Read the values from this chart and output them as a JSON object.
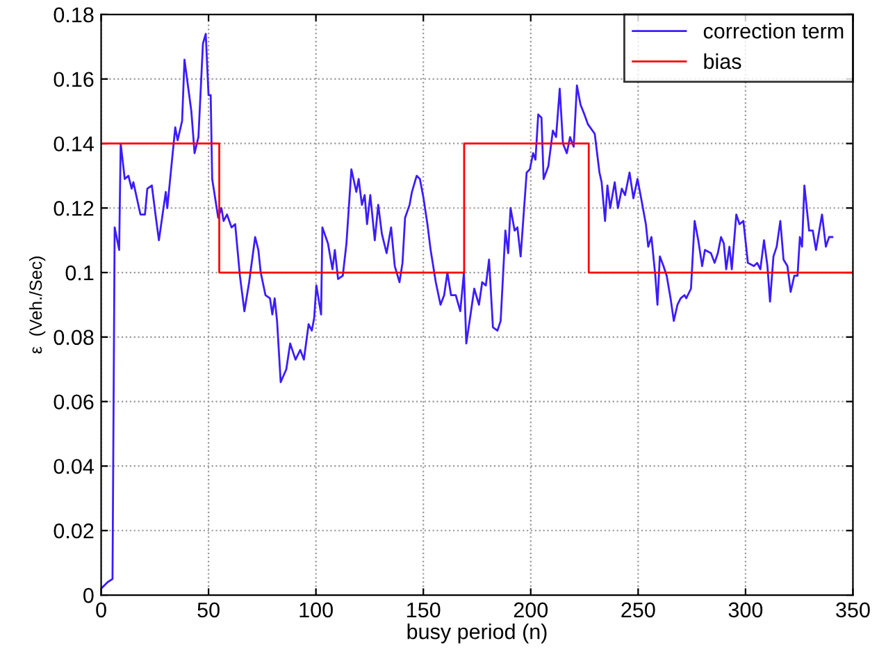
{
  "chart_data": {
    "type": "line",
    "xlabel": "busy period (n)",
    "ylabel": "ε  (Veh./Sec)",
    "xlim": [
      0,
      350
    ],
    "xticks": [
      0,
      50,
      100,
      150,
      200,
      250,
      300,
      350
    ],
    "ylim": [
      0,
      0.18
    ],
    "yticks": [
      0,
      0.02,
      0.04,
      0.06,
      0.08,
      0.1,
      0.12,
      0.14,
      0.16,
      0.18
    ],
    "grid": true,
    "legend": "top right",
    "series": [
      {
        "name": "correction term",
        "color": "#3b1cff",
        "x": [
          0,
          3,
          5.3,
          6.3,
          8.4,
          9.1,
          11,
          12.7,
          14.2,
          15,
          18.3,
          20.4,
          21.5,
          23.6,
          25.3,
          26.9,
          30.1,
          30.8,
          34.5,
          35.6,
          37.7,
          38.8,
          42,
          43.5,
          45.3,
          47.4,
          48.7,
          50,
          51,
          51.7,
          54.5,
          56,
          57,
          58.6,
          60.7,
          62.4,
          64.6,
          66.7,
          68.9,
          71.7,
          73.2,
          74.3,
          76.5,
          78.6,
          79.7,
          80.8,
          81.9,
          83.6,
          86.2,
          88,
          90.5,
          92.7,
          94.4,
          96.6,
          98.1,
          99.2,
          100.2,
          102.4,
          103,
          105.6,
          107.7,
          108.8,
          110.3,
          112.5,
          114.2,
          116.5,
          118.8,
          119.9,
          121.4,
          122.7,
          123.8,
          125.3,
          127.4,
          129,
          130.7,
          132.9,
          135,
          136.7,
          138.9,
          140.3,
          141.5,
          143.6,
          144.7,
          146.9,
          148.4,
          150.1,
          151.9,
          153.4,
          155.8,
          158,
          159.7,
          161.2,
          162.9,
          165.1,
          167.2,
          168.9,
          170,
          172.2,
          173.7,
          175.9,
          177.4,
          179.1,
          180.6,
          182.4,
          184.5,
          186,
          188.2,
          189.5,
          190.6,
          192.5,
          193.8,
          195.3,
          198.1,
          199.6,
          201.1,
          202.2,
          203.5,
          205,
          206,
          208.2,
          210.3,
          211.8,
          213.5,
          215,
          216.8,
          218.3,
          220,
          221.5,
          223.2,
          225,
          226.6,
          229.8,
          232,
          233,
          234.6,
          235.7,
          237,
          239.1,
          240.6,
          242.4,
          243.9,
          246,
          247.8,
          249.7,
          251.4,
          253.6,
          254.7,
          256.2,
          258,
          259,
          260.1,
          261.8,
          263.3,
          265.1,
          266.6,
          268.3,
          269.8,
          271.6,
          272.4,
          274.6,
          276.3,
          278,
          279.8,
          281.1,
          283.9,
          285.6,
          287.1,
          288.6,
          289.9,
          291,
          292.5,
          293.6,
          295.7,
          297.2,
          299,
          301.1,
          303.9,
          305.4,
          306.9,
          308.6,
          310.2,
          311.4,
          313,
          314.5,
          316.2,
          317.7,
          319.5,
          321,
          322.7,
          324.2,
          325.3,
          326.3,
          327.4,
          329.6,
          331.3,
          332.8,
          335.6,
          337.4,
          338.9,
          340.4
        ],
        "values": [
          0.002,
          0.004,
          0.005,
          0.114,
          0.107,
          0.14,
          0.129,
          0.13,
          0.126,
          0.128,
          0.118,
          0.118,
          0.126,
          0.127,
          0.118,
          0.11,
          0.125,
          0.12,
          0.145,
          0.141,
          0.147,
          0.166,
          0.15,
          0.137,
          0.142,
          0.171,
          0.174,
          0.155,
          0.155,
          0.129,
          0.117,
          0.12,
          0.116,
          0.118,
          0.114,
          0.115,
          0.099,
          0.088,
          0.097,
          0.111,
          0.107,
          0.1,
          0.093,
          0.092,
          0.087,
          0.092,
          0.085,
          0.066,
          0.07,
          0.078,
          0.073,
          0.076,
          0.073,
          0.084,
          0.082,
          0.086,
          0.096,
          0.087,
          0.114,
          0.109,
          0.101,
          0.107,
          0.098,
          0.099,
          0.109,
          0.132,
          0.125,
          0.129,
          0.121,
          0.124,
          0.115,
          0.124,
          0.11,
          0.121,
          0.112,
          0.106,
          0.114,
          0.102,
          0.097,
          0.103,
          0.117,
          0.121,
          0.125,
          0.13,
          0.129,
          0.123,
          0.115,
          0.107,
          0.097,
          0.09,
          0.093,
          0.1,
          0.093,
          0.093,
          0.088,
          0.1,
          0.078,
          0.088,
          0.095,
          0.09,
          0.097,
          0.096,
          0.104,
          0.083,
          0.082,
          0.085,
          0.113,
          0.106,
          0.12,
          0.113,
          0.114,
          0.105,
          0.131,
          0.132,
          0.137,
          0.135,
          0.149,
          0.148,
          0.129,
          0.133,
          0.144,
          0.142,
          0.157,
          0.14,
          0.137,
          0.142,
          0.139,
          0.158,
          0.152,
          0.149,
          0.146,
          0.143,
          0.131,
          0.128,
          0.116,
          0.127,
          0.12,
          0.128,
          0.12,
          0.126,
          0.124,
          0.131,
          0.123,
          0.129,
          0.123,
          0.115,
          0.108,
          0.111,
          0.099,
          0.09,
          0.105,
          0.102,
          0.099,
          0.092,
          0.085,
          0.09,
          0.092,
          0.093,
          0.092,
          0.095,
          0.116,
          0.11,
          0.102,
          0.107,
          0.106,
          0.103,
          0.106,
          0.111,
          0.109,
          0.101,
          0.108,
          0.101,
          0.118,
          0.115,
          0.116,
          0.103,
          0.102,
          0.103,
          0.101,
          0.11,
          0.102,
          0.091,
          0.105,
          0.108,
          0.116,
          0.104,
          0.102,
          0.094,
          0.099,
          0.099,
          0.111,
          0.108,
          0.127,
          0.113,
          0.113,
          0.107,
          0.118,
          0.108,
          0.111,
          0.111
        ]
      },
      {
        "name": "bias",
        "color": "#ff0000",
        "type": "step",
        "x": [
          0,
          55,
          169,
          227,
          350
        ],
        "values": [
          0.14,
          0.1,
          0.14,
          0.1,
          0.1
        ]
      }
    ]
  }
}
